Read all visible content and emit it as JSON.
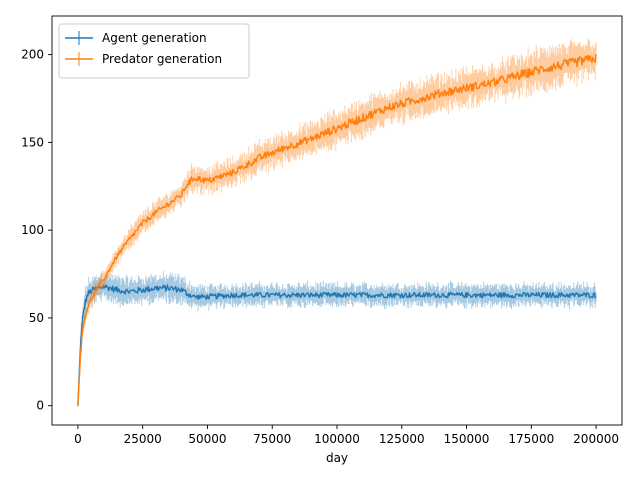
{
  "chart_data": {
    "type": "line",
    "title": "",
    "xlabel": "day",
    "ylabel": "",
    "xlim": [
      -10000,
      210000
    ],
    "ylim": [
      -11,
      222
    ],
    "x_ticks": [
      0,
      25000,
      50000,
      75000,
      100000,
      125000,
      150000,
      175000,
      200000
    ],
    "x_tick_labels": [
      "0",
      "25000",
      "50000",
      "75000",
      "100000",
      "125000",
      "150000",
      "175000",
      "200000"
    ],
    "y_ticks": [
      0,
      50,
      100,
      150,
      200
    ],
    "y_tick_labels": [
      "0",
      "50",
      "100",
      "150",
      "200"
    ],
    "grid": false,
    "legend_position": "top-left",
    "error_bars": true,
    "series": [
      {
        "name": "Agent generation",
        "color": "#1f77b4",
        "x": [
          0,
          1000,
          2000,
          3000,
          4000,
          6000,
          8000,
          10000,
          15000,
          20000,
          25000,
          30000,
          35000,
          40000,
          42000,
          45000,
          50000,
          60000,
          70000,
          80000,
          90000,
          100000,
          110000,
          120000,
          130000,
          140000,
          150000,
          160000,
          170000,
          180000,
          190000,
          200000
        ],
        "y": [
          0,
          35,
          52,
          60,
          64,
          66,
          67,
          68,
          66,
          65,
          66,
          67,
          67,
          66,
          64,
          62,
          62,
          63,
          63,
          63,
          63,
          63,
          63,
          63,
          63,
          63,
          63,
          63,
          63,
          63,
          63,
          63
        ],
        "err": [
          1,
          5,
          6,
          6,
          6,
          6,
          6,
          6,
          6,
          6,
          6,
          6,
          6,
          6,
          6,
          5,
          5,
          5,
          5,
          5,
          5,
          5,
          5,
          5,
          5,
          5,
          5,
          5,
          5,
          5,
          5,
          5
        ]
      },
      {
        "name": "Predator generation",
        "color": "#ff7f0e",
        "x": [
          0,
          1000,
          2000,
          3000,
          4000,
          6000,
          8000,
          10000,
          15000,
          20000,
          25000,
          30000,
          35000,
          40000,
          42000,
          45000,
          50000,
          60000,
          70000,
          80000,
          90000,
          100000,
          110000,
          120000,
          130000,
          140000,
          150000,
          160000,
          170000,
          180000,
          190000,
          200000
        ],
        "y": [
          0,
          30,
          45,
          52,
          57,
          63,
          68,
          72,
          85,
          95,
          104,
          110,
          115,
          120,
          126,
          130,
          128,
          133,
          141,
          147,
          152,
          158,
          164,
          170,
          174,
          178,
          181,
          184,
          188,
          192,
          195,
          198
        ],
        "err": [
          1,
          4,
          4,
          4,
          4,
          4,
          4,
          4,
          4,
          5,
          5,
          5,
          5,
          5,
          6,
          6,
          6,
          6,
          7,
          7,
          7,
          8,
          8,
          8,
          8,
          8,
          8,
          8,
          9,
          9,
          9,
          9
        ]
      }
    ]
  }
}
